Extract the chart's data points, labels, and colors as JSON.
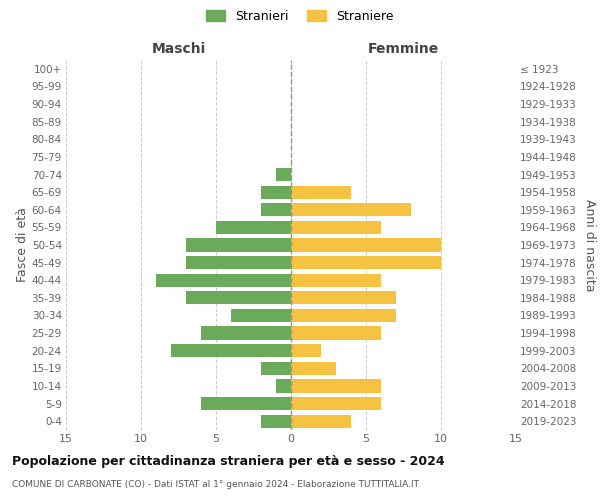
{
  "age_groups": [
    "100+",
    "95-99",
    "90-94",
    "85-89",
    "80-84",
    "75-79",
    "70-74",
    "65-69",
    "60-64",
    "55-59",
    "50-54",
    "45-49",
    "40-44",
    "35-39",
    "30-34",
    "25-29",
    "20-24",
    "15-19",
    "10-14",
    "5-9",
    "0-4"
  ],
  "birth_years": [
    "≤ 1923",
    "1924-1928",
    "1929-1933",
    "1934-1938",
    "1939-1943",
    "1944-1948",
    "1949-1953",
    "1954-1958",
    "1959-1963",
    "1964-1968",
    "1969-1973",
    "1974-1978",
    "1979-1983",
    "1984-1988",
    "1989-1993",
    "1994-1998",
    "1999-2003",
    "2004-2008",
    "2009-2013",
    "2014-2018",
    "2019-2023"
  ],
  "maschi": [
    0,
    0,
    0,
    0,
    0,
    0,
    1,
    2,
    2,
    5,
    7,
    7,
    9,
    7,
    4,
    6,
    8,
    2,
    1,
    6,
    2
  ],
  "femmine": [
    0,
    0,
    0,
    0,
    0,
    0,
    0,
    4,
    8,
    6,
    10,
    10,
    6,
    7,
    7,
    6,
    2,
    3,
    6,
    6,
    4
  ],
  "maschi_color": "#6aaa5a",
  "femmine_color": "#f5c242",
  "background_color": "#ffffff",
  "grid_color": "#cccccc",
  "title": "Popolazione per cittadinanza straniera per età e sesso - 2024",
  "subtitle": "COMUNE DI CARBONATE (CO) - Dati ISTAT al 1° gennaio 2024 - Elaborazione TUTTITALIA.IT",
  "left_label": "Maschi",
  "right_label": "Femmine",
  "ylabel": "Fasce di età",
  "right_ylabel": "Anni di nascita",
  "legend_maschi": "Stranieri",
  "legend_femmine": "Straniere",
  "xlim": 15
}
